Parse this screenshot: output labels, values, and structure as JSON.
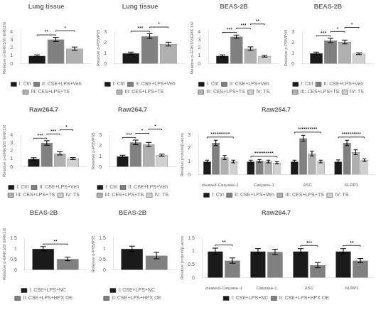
{
  "chart_data": [
    {
      "type": "bar",
      "title": "Lung tissue",
      "ylabel": "Relative p-ERK1/2/ ERK1/2",
      "categories": [
        null
      ],
      "series": [
        {
          "name": "I: Ctrl",
          "color": "#1a1a1a",
          "values": [
            1.0
          ],
          "errors": [
            0.12
          ]
        },
        {
          "name": "II: CSE+LPS+Veh",
          "color": "#808080",
          "values": [
            3.05
          ],
          "errors": [
            0.25
          ]
        },
        {
          "name": "III: CES+LPS+TS",
          "color": "#b0b0b0",
          "values": [
            1.9
          ],
          "errors": [
            0.2
          ]
        }
      ],
      "ylim": [
        0,
        4
      ],
      "yticks": [
        0,
        1,
        2,
        3,
        4
      ],
      "grid": false,
      "legend": "bottom",
      "annotations": [
        {
          "text": "**",
          "from": "I: Ctrl",
          "to": "II: CSE+LPS+Veh"
        },
        {
          "text": "*",
          "from": "II: CSE+LPS+Veh",
          "to": "III: CES+LPS+TS"
        }
      ]
    },
    {
      "type": "bar",
      "title": "Lung tissue",
      "ylabel": "Relative p-P65/P65",
      "categories": [
        null
      ],
      "series": [
        {
          "name": "I: Ctrl",
          "color": "#1a1a1a",
          "values": [
            1.0
          ],
          "errors": [
            0.1
          ]
        },
        {
          "name": "II: CSE+LPS+Veh",
          "color": "#808080",
          "values": [
            2.6
          ],
          "errors": [
            0.22
          ]
        },
        {
          "name": "III: CES+LPS+TS",
          "color": "#b0b0b0",
          "values": [
            1.85
          ],
          "errors": [
            0.18
          ]
        }
      ],
      "ylim": [
        0,
        3
      ],
      "yticks": [
        0,
        1,
        2,
        3
      ],
      "grid": false,
      "legend": "bottom",
      "annotations": [
        {
          "text": "***",
          "from": "I: Ctrl",
          "to": "II: CSE+LPS+Veh"
        },
        {
          "text": "*",
          "from": "II: CSE+LPS+Veh",
          "to": "III: CES+LPS+TS"
        }
      ]
    },
    {
      "type": "bar",
      "title": "BEAS-2B",
      "ylabel": "Relative p-ERK1/2/ERK 1/2",
      "categories": [
        null
      ],
      "series": [
        {
          "name": "I: Ctrl",
          "color": "#1a1a1a",
          "values": [
            1.0
          ],
          "errors": [
            0.12
          ]
        },
        {
          "name": "II: CSE+LPS+Veh",
          "color": "#808080",
          "values": [
            3.4
          ],
          "errors": [
            0.2
          ]
        },
        {
          "name": "III: CES+LPS+TS",
          "color": "#b0b0b0",
          "values": [
            1.9
          ],
          "errors": [
            0.22
          ]
        },
        {
          "name": "IV: TS",
          "color": "#d0d0d0",
          "values": [
            0.95
          ],
          "errors": [
            0.1
          ]
        }
      ],
      "ylim": [
        0,
        4
      ],
      "yticks": [
        0,
        1,
        2,
        3,
        4
      ],
      "grid": false,
      "legend": "bottom",
      "annotations": [
        {
          "text": "***",
          "from": "I: Ctrl",
          "to": "II: CSE+LPS+Veh"
        },
        {
          "text": "***",
          "from": "II: CSE+LPS+Veh",
          "to": "III: CES+LPS+TS"
        },
        {
          "text": "**",
          "from": "III: CES+LPS+TS",
          "to": "IV: TS"
        }
      ]
    },
    {
      "type": "bar",
      "title": "BEAS-2B",
      "ylabel": "Relative p-P65/P65",
      "categories": [
        null
      ],
      "series": [
        {
          "name": "I: Ctrl",
          "color": "#1a1a1a",
          "values": [
            1.0
          ],
          "errors": [
            0.1
          ]
        },
        {
          "name": "II: CSE+LPS+Veh",
          "color": "#808080",
          "values": [
            2.2
          ],
          "errors": [
            0.2
          ]
        },
        {
          "name": "III: CES+LPS+TS",
          "color": "#b0b0b0",
          "values": [
            2.05
          ],
          "errors": [
            0.18
          ]
        },
        {
          "name": "IV: TS",
          "color": "#d0d0d0",
          "values": [
            0.95
          ],
          "errors": [
            0.08
          ]
        }
      ],
      "ylim": [
        0,
        3
      ],
      "yticks": [
        0,
        1,
        2,
        3
      ],
      "grid": false,
      "legend": "bottom",
      "annotations": [
        {
          "text": "***",
          "from": "I: Ctrl",
          "to": "II: CSE+LPS+Veh"
        },
        {
          "text": "*",
          "from": "II: CSE+LPS+Veh",
          "to": "III: CES+LPS+TS"
        },
        {
          "text": "*",
          "from": "III: CES+LPS+TS",
          "to": "IV: TS"
        }
      ]
    },
    {
      "type": "bar",
      "title": "Raw264.7",
      "ylabel": "Relative p-ERK1/2/ ERK1/2",
      "categories": [
        null
      ],
      "series": [
        {
          "name": "I: Ctrl",
          "color": "#1a1a1a",
          "values": [
            1.0
          ],
          "errors": [
            0.15
          ]
        },
        {
          "name": "II: CSE+LPS+Veh",
          "color": "#808080",
          "values": [
            3.0
          ],
          "errors": [
            0.28
          ]
        },
        {
          "name": "III: CES+LPS+TS",
          "color": "#b0b0b0",
          "values": [
            1.7
          ],
          "errors": [
            0.2
          ]
        },
        {
          "name": "IV: TS",
          "color": "#d0d0d0",
          "values": [
            1.05
          ],
          "errors": [
            0.12
          ]
        }
      ],
      "ylim": [
        0,
        4
      ],
      "yticks": [
        0,
        1,
        2,
        3,
        4
      ],
      "grid": false,
      "legend": "bottom",
      "annotations": [
        {
          "text": "***",
          "from": "I: Ctrl",
          "to": "II: CSE+LPS+Veh"
        },
        {
          "text": "***",
          "from": "II: CSE+LPS+Veh",
          "to": "III: CES+LPS+TS"
        },
        {
          "text": "*",
          "from": "III: CES+LPS+TS",
          "to": "IV: TS"
        }
      ]
    },
    {
      "type": "bar",
      "title": "Raw264.7",
      "ylabel": "Relative p-P65/P65",
      "categories": [
        null
      ],
      "series": [
        {
          "name": "I: Ctrl",
          "color": "#1a1a1a",
          "values": [
            1.0
          ],
          "errors": [
            0.1
          ]
        },
        {
          "name": "II: CSE+LPS+Veh",
          "color": "#808080",
          "values": [
            2.3
          ],
          "errors": [
            0.22
          ]
        },
        {
          "name": "III: CES+LPS+TS",
          "color": "#b0b0b0",
          "values": [
            2.1
          ],
          "errors": [
            0.2
          ]
        },
        {
          "name": "IV: TS",
          "color": "#d0d0d0",
          "values": [
            1.1
          ],
          "errors": [
            0.1
          ]
        }
      ],
      "ylim": [
        0,
        3
      ],
      "yticks": [
        0,
        1,
        2,
        3
      ],
      "grid": false,
      "legend": "bottom",
      "annotations": [
        {
          "text": "***",
          "from": "I: Ctrl",
          "to": "II: CSE+LPS+Veh"
        },
        {
          "text": "*",
          "from": "II: CSE+LPS+Veh",
          "to": "III: CES+LPS+TS"
        },
        {
          "text": "*",
          "from": "III: CES+LPS+TS",
          "to": "IV: TS"
        }
      ]
    },
    {
      "type": "bar",
      "title": "Raw264.7",
      "ylabel": "Relative protein/β-actin",
      "categories": [
        "cleaved-Caspase-1",
        "Caspase-1",
        "ASC",
        "NLRP3"
      ],
      "series": [
        {
          "name": "I: Ctrl",
          "color": "#1a1a1a",
          "values": [
            1.0,
            1.0,
            1.0,
            1.0
          ],
          "errors": [
            0.1,
            0.1,
            0.1,
            0.12
          ]
        },
        {
          "name": "II: CSE+LPS+Veh",
          "color": "#808080",
          "values": [
            2.4,
            1.05,
            2.75,
            2.4
          ],
          "errors": [
            0.2,
            0.1,
            0.22,
            0.2
          ]
        },
        {
          "name": "III: CES+LPS+TS",
          "color": "#b0b0b0",
          "values": [
            1.3,
            1.0,
            1.6,
            1.7
          ],
          "errors": [
            0.15,
            0.1,
            0.18,
            0.18
          ]
        },
        {
          "name": "IV: TS",
          "color": "#d0d0d0",
          "values": [
            1.0,
            0.9,
            1.0,
            1.1
          ],
          "errors": [
            0.1,
            0.08,
            0.1,
            0.1
          ]
        }
      ],
      "ylim": [
        0,
        3
      ],
      "yticks": [
        0,
        1,
        2,
        3
      ],
      "grid": false,
      "legend": "bottom",
      "annotations": [
        {
          "text": "**********",
          "category": "cleaved-Caspase-1",
          "from": "I: Ctrl",
          "to": "IV: TS"
        },
        {
          "text": "**********",
          "category": "Caspase-1",
          "from": "I: Ctrl",
          "to": "IV: TS"
        },
        {
          "text": "**********",
          "category": "ASC",
          "from": "I: Ctrl",
          "to": "IV: TS"
        },
        {
          "text": "**********",
          "category": "NLRP3",
          "from": "I: Ctrl",
          "to": "IV: TS"
        }
      ]
    },
    {
      "type": "bar",
      "title": "BEAS-2B",
      "ylabel": "Relative p-ERK1/2/ ERK1/2",
      "categories": [
        null
      ],
      "series": [
        {
          "name": "I: CSE+LPS+NC",
          "color": "#1a1a1a",
          "values": [
            1.0
          ],
          "errors": [
            0.1
          ]
        },
        {
          "name": "II: CSE+LPS+HPX OE",
          "color": "#808080",
          "values": [
            0.52
          ],
          "errors": [
            0.08
          ]
        }
      ],
      "ylim": [
        0,
        1.5
      ],
      "yticks": [
        0,
        0.5,
        1,
        1.5
      ],
      "grid": false,
      "legend": "bottom",
      "annotations": [
        {
          "text": "**",
          "from": "I: CSE+LPS+NC",
          "to": "II: CSE+LPS+HPX OE"
        }
      ]
    },
    {
      "type": "bar",
      "title": "BEAS-2B",
      "ylabel": "Relative p-P65/P65",
      "categories": [
        null
      ],
      "series": [
        {
          "name": "I: CSE+LPS+NC",
          "color": "#1a1a1a",
          "values": [
            1.0
          ],
          "errors": [
            0.12
          ]
        },
        {
          "name": "II: CSE+LPS+HPX OE",
          "color": "#808080",
          "values": [
            0.68
          ],
          "errors": [
            0.15
          ]
        }
      ],
      "ylim": [
        0,
        1.5
      ],
      "yticks": [
        0,
        0.5,
        1,
        1.5
      ],
      "grid": false,
      "legend": "bottom"
    },
    {
      "type": "bar",
      "title": "Raw264.7",
      "ylabel": "Relative protein/β-actin",
      "categories": [
        "cleaved-Caspase-1",
        "Caspase-1",
        "ASC",
        "NLRP3"
      ],
      "series": [
        {
          "name": "I: CSE+LPS+NC",
          "color": "#1a1a1a",
          "values": [
            1.0,
            1.0,
            1.0,
            1.0
          ],
          "errors": [
            0.12,
            0.1,
            0.1,
            0.1
          ]
        },
        {
          "name": "II: CSE+LPS+HPX OE",
          "color": "#808080",
          "values": [
            0.65,
            0.98,
            0.48,
            0.65
          ],
          "errors": [
            0.1,
            0.1,
            0.1,
            0.08
          ]
        }
      ],
      "ylim": [
        0,
        1.5
      ],
      "yticks": [
        0,
        0.5,
        1,
        1.5
      ],
      "grid": false,
      "legend": "bottom",
      "annotations": [
        {
          "text": "**",
          "category": "cleaved-Caspase-1",
          "from": "I: CSE+LPS+NC",
          "to": "II: CSE+LPS+HPX OE"
        },
        {
          "text": "***",
          "category": "ASC",
          "from": "I: CSE+LPS+NC",
          "to": "II: CSE+LPS+HPX OE"
        },
        {
          "text": "**",
          "category": "NLRP3",
          "from": "I: CSE+LPS+NC",
          "to": "II: CSE+LPS+HPX OE"
        }
      ]
    }
  ]
}
